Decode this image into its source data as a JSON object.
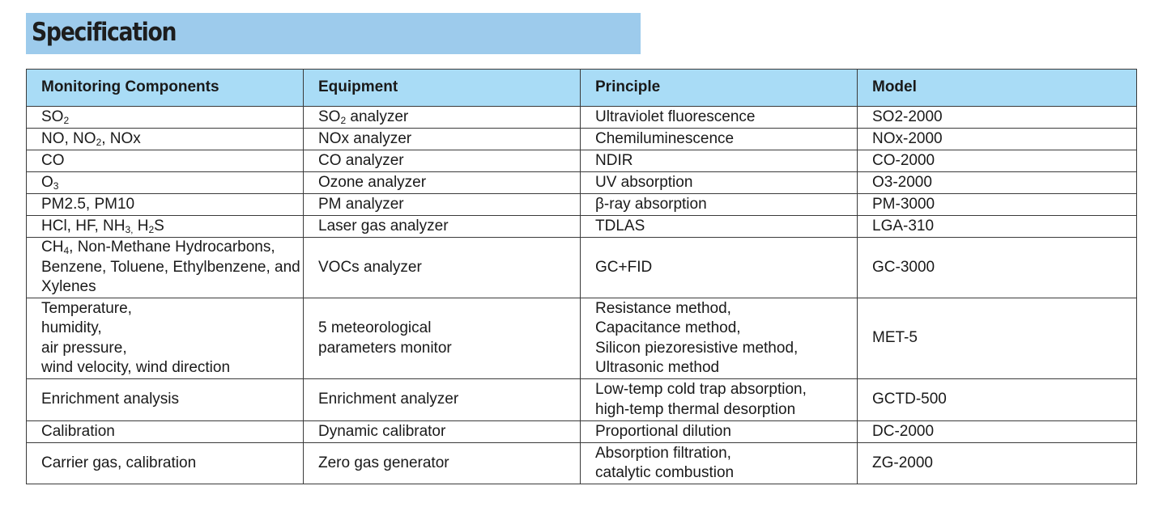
{
  "title": "Specification",
  "headers": [
    "Monitoring Components",
    "Equipment",
    "Principle",
    "Model"
  ],
  "rows": [
    {
      "component": [
        [
          "SO",
          "2",
          ""
        ]
      ],
      "equipment": [
        [
          "SO",
          "2",
          " analyzer"
        ]
      ],
      "principle": [
        "Ultraviolet fluorescence"
      ],
      "model": "SO2-2000"
    },
    {
      "component": [
        [
          "NO, NO",
          "2",
          ", NOx"
        ]
      ],
      "equipment": [
        [
          "NOx analyzer",
          "",
          ""
        ]
      ],
      "principle": [
        "Chemiluminescence"
      ],
      "model": "NOx-2000"
    },
    {
      "component": [
        [
          "CO",
          "",
          ""
        ]
      ],
      "equipment": [
        [
          "CO analyzer",
          "",
          ""
        ]
      ],
      "principle": [
        "NDIR"
      ],
      "model": "CO-2000"
    },
    {
      "component": [
        [
          "O",
          "3",
          ""
        ]
      ],
      "equipment": [
        [
          "Ozone analyzer",
          "",
          ""
        ]
      ],
      "principle": [
        "UV absorption"
      ],
      "model": "O3-2000"
    },
    {
      "component": [
        [
          "PM2.5, PM10",
          "",
          ""
        ]
      ],
      "equipment": [
        [
          "PM analyzer",
          "",
          ""
        ]
      ],
      "principle": [
        "β-ray absorption"
      ],
      "model": "PM-3000"
    },
    {
      "component": [
        [
          "HCl, HF, NH",
          "3,",
          " H"
        ],
        [
          "",
          "2",
          "S"
        ]
      ],
      "equipment": [
        [
          "Laser gas analyzer",
          "",
          ""
        ]
      ],
      "principle": [
        "TDLAS"
      ],
      "model": "LGA-310"
    },
    {
      "component": [
        [
          "CH",
          "4",
          ", Non-Methane Hydrocarbons, Benzene, Toluene, Ethylbenzene, and Xylenes"
        ]
      ],
      "equipment": [
        [
          "VOCs analyzer",
          "",
          ""
        ]
      ],
      "principle": [
        "GC+FID"
      ],
      "model": "GC-3000"
    },
    {
      "component_lines": [
        "Temperature,",
        "humidity,",
        "air pressure,",
        "wind velocity, wind direction"
      ],
      "equipment_lines": [
        "5 meteorological",
        "parameters monitor"
      ],
      "principle": [
        "Resistance method,",
        "Capacitance method,",
        "Silicon piezoresistive method,",
        "Ultrasonic method"
      ],
      "model": "MET-5"
    },
    {
      "component_lines": [
        "Enrichment analysis"
      ],
      "equipment_lines": [
        "Enrichment analyzer"
      ],
      "principle": [
        "Low-temp cold trap absorption,",
        "high-temp thermal desorption"
      ],
      "model": "GCTD-500"
    },
    {
      "component_lines": [
        "Calibration"
      ],
      "equipment_lines": [
        "Dynamic calibrator"
      ],
      "principle": [
        "Proportional dilution"
      ],
      "model": "DC-2000"
    },
    {
      "component_lines": [
        "Carrier gas, calibration"
      ],
      "equipment_lines": [
        "Zero gas generator"
      ],
      "principle": [
        "Absorption filtration,",
        "catalytic combustion"
      ],
      "model": "ZG-2000"
    }
  ]
}
